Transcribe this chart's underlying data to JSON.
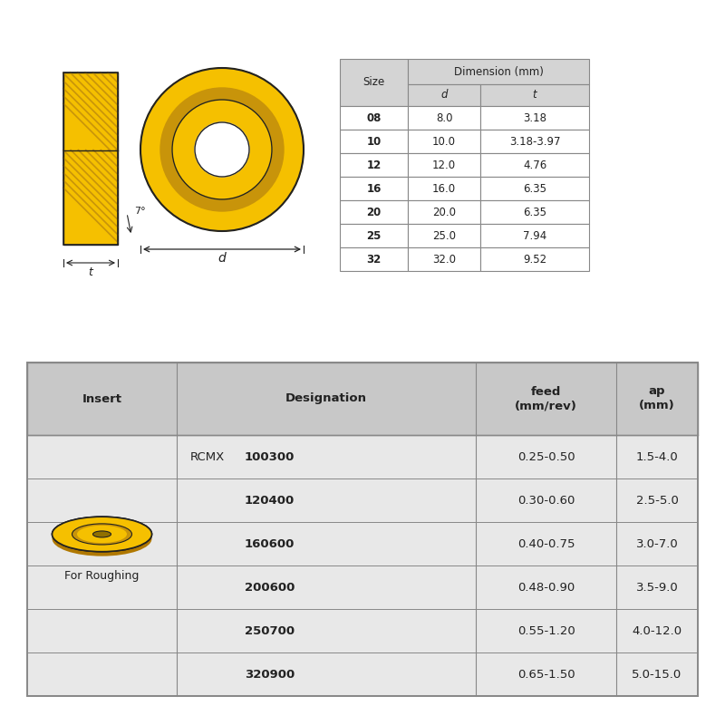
{
  "background_color": "#ffffff",
  "dim_table": {
    "rows": [
      [
        "08",
        "8.0",
        "3.18"
      ],
      [
        "10",
        "10.0",
        "3.18-3.97"
      ],
      [
        "12",
        "12.0",
        "4.76"
      ],
      [
        "16",
        "16.0",
        "6.35"
      ],
      [
        "20",
        "20.0",
        "6.35"
      ],
      [
        "25",
        "25.0",
        "7.94"
      ],
      [
        "32",
        "32.0",
        "9.52"
      ]
    ]
  },
  "bottom_table": {
    "prefix": "RCMX",
    "rows": [
      [
        "100300",
        "0.25-0.50",
        "1.5-4.0"
      ],
      [
        "120400",
        "0.30-0.60",
        "2.5-5.0"
      ],
      [
        "160600",
        "0.40-0.75",
        "3.0-7.0"
      ],
      [
        "200600",
        "0.48-0.90",
        "3.5-9.0"
      ],
      [
        "250700",
        "0.55-1.20",
        "4.0-12.0"
      ],
      [
        "320900",
        "0.65-1.50",
        "5.0-15.0"
      ]
    ],
    "insert_label": "For Roughing"
  },
  "yellow_outer": "#f5c000",
  "yellow_mid": "#d4a000",
  "yellow_dark": "#c8940a",
  "hole_white": "#ffffff",
  "hole_ring": "#c8940a",
  "insert_3d_top": "#e8a800",
  "insert_3d_shadow": "#b07800",
  "insert_3d_hole": "#907000",
  "table_header_bg": "#d4d4d4",
  "table_row_bg": "#ffffff",
  "table_border": "#888888",
  "bt_header_bg": "#c8c8c8",
  "bt_body_bg": "#e8e8e8",
  "text_dark": "#222222",
  "text_mid": "#333333",
  "side_yellow": "#f5c000",
  "side_hatch": "#c8940a",
  "side_outline": "#222222"
}
